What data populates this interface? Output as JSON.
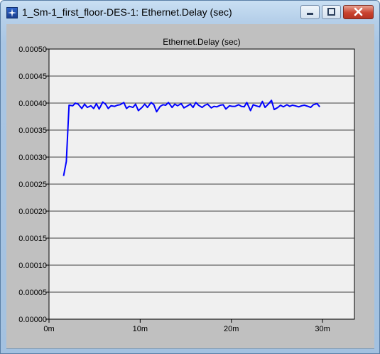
{
  "window": {
    "title": "1_Sm-1_first_floor-DES-1: Ethernet.Delay (sec)",
    "icon": "app-star-icon",
    "buttons": {
      "minimize": "minimize-icon",
      "maximize": "maximize-icon",
      "close": "close-icon"
    }
  },
  "colors": {
    "line": "#0000ff",
    "plot_bg": "#f0f0f0",
    "frame_bg": "#c0c0c0",
    "grid": "#404040"
  },
  "chart_data": {
    "type": "line",
    "title": "Ethernet.Delay (sec)",
    "xlabel": "",
    "ylabel": "",
    "xlim": [
      0,
      33.5
    ],
    "ylim": [
      0,
      0.0005
    ],
    "grid": true,
    "x_ticks": [
      0,
      10,
      20,
      30
    ],
    "x_tick_labels": [
      "0m",
      "10m",
      "20m",
      "30m"
    ],
    "y_ticks": [
      0,
      5e-05,
      0.0001,
      0.00015,
      0.0002,
      0.00025,
      0.0003,
      0.00035,
      0.0004,
      0.00045,
      0.0005
    ],
    "y_tick_labels": [
      "0.00000",
      "0.00005",
      "0.00010",
      "0.00015",
      "0.00020",
      "0.00025",
      "0.00030",
      "0.00035",
      "0.00040",
      "0.00045",
      "0.00050"
    ],
    "series": [
      {
        "color": "#0000ff",
        "x": [
          1.6,
          1.9,
          2.2,
          2.6,
          2.9,
          3.2,
          3.6,
          3.9,
          4.2,
          4.6,
          4.9,
          5.2,
          5.5,
          5.9,
          6.2,
          6.5,
          6.8,
          7.2,
          7.5,
          7.8,
          8.2,
          8.5,
          8.8,
          9.2,
          9.5,
          9.8,
          10.2,
          10.5,
          10.8,
          11.2,
          11.5,
          11.8,
          12.2,
          12.5,
          12.8,
          13.1,
          13.5,
          13.8,
          14.1,
          14.5,
          14.8,
          15.1,
          15.5,
          15.8,
          16.1,
          16.4,
          16.8,
          17.1,
          17.4,
          17.8,
          18.1,
          18.4,
          18.8,
          19.1,
          19.4,
          19.8,
          20.1,
          20.4,
          20.8,
          21.1,
          21.4,
          21.7,
          22.1,
          22.4,
          22.7,
          23.1,
          23.4,
          23.7,
          24.1,
          24.4,
          24.7,
          25.1,
          25.4,
          25.7,
          26.1,
          26.4,
          26.7,
          27.0,
          27.4,
          27.7,
          28.0,
          28.4,
          28.7,
          29.0,
          29.4,
          29.7
        ],
        "y": [
          0.000265,
          0.000292,
          0.000396,
          0.000395,
          0.0004,
          0.000398,
          0.00039,
          0.000398,
          0.000392,
          0.000395,
          0.00039,
          0.000399,
          0.000389,
          0.000402,
          0.000398,
          0.00039,
          0.000395,
          0.000394,
          0.000396,
          0.000397,
          0.000401,
          0.00039,
          0.000394,
          0.000392,
          0.000398,
          0.000386,
          0.000392,
          0.000398,
          0.000392,
          0.000401,
          0.000397,
          0.000384,
          0.000394,
          0.000397,
          0.000396,
          0.000401,
          0.000392,
          0.000398,
          0.000395,
          0.000399,
          0.000391,
          0.000394,
          0.000398,
          0.000392,
          0.000401,
          0.000396,
          0.000392,
          0.000396,
          0.000398,
          0.000391,
          0.000394,
          0.000393,
          0.000396,
          0.000397,
          0.000389,
          0.000395,
          0.000394,
          0.000394,
          0.000397,
          0.000394,
          0.000393,
          0.000401,
          0.000386,
          0.000397,
          0.000395,
          0.000393,
          0.000403,
          0.000392,
          0.000399,
          0.000405,
          0.000388,
          0.000392,
          0.000396,
          0.000393,
          0.000397,
          0.000394,
          0.000396,
          0.000395,
          0.000393,
          0.000395,
          0.000396,
          0.000394,
          0.000392,
          0.000397,
          0.000399,
          0.000393
        ]
      }
    ]
  }
}
